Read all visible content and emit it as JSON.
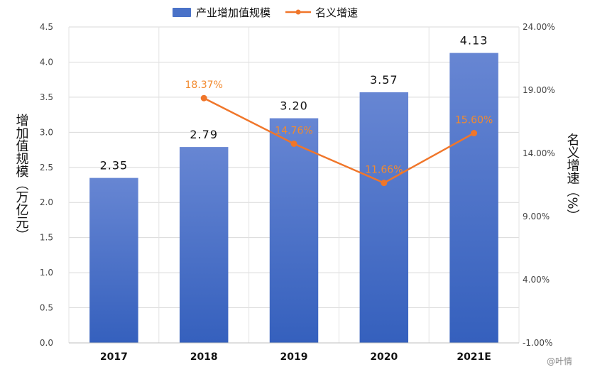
{
  "chart_data": {
    "type": "bar",
    "categories": [
      "2017",
      "2018",
      "2019",
      "2020",
      "2021E"
    ],
    "series": [
      {
        "name": "产业增加值规模",
        "type": "bar",
        "axis": "left",
        "values": [
          2.35,
          2.79,
          3.2,
          3.57,
          4.13
        ],
        "labels": [
          "2.35",
          "2.79",
          "3.20",
          "3.57",
          "4.13"
        ],
        "color": "#4a72c8"
      },
      {
        "name": "名义增速",
        "type": "line",
        "axis": "right",
        "values": [
          null,
          18.37,
          14.76,
          11.66,
          15.6
        ],
        "labels": [
          "",
          "18.37%",
          "14.76%",
          "11.66%",
          "15.60%"
        ],
        "color": "#f0762a"
      }
    ],
    "ylabel": "增加值规模（万亿元）",
    "y2label": "名义增速（%）",
    "ylim": [
      0,
      4.5
    ],
    "y2lim": [
      -1.0,
      24.0
    ],
    "yticks": [
      "0.0",
      "0.5",
      "1.0",
      "1.5",
      "2.0",
      "2.5",
      "3.0",
      "3.5",
      "4.0",
      "4.5"
    ],
    "y2ticks": [
      "-1.00%",
      "4.00%",
      "9.00%",
      "14.00%",
      "19.00%",
      "24.00%"
    ],
    "grid": true,
    "legend_position": "top-center"
  },
  "watermark": "@叶情"
}
